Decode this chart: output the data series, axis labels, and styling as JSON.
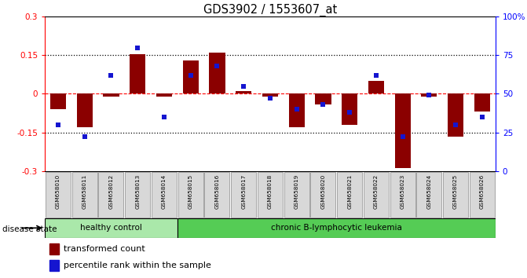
{
  "title": "GDS3902 / 1553607_at",
  "samples": [
    "GSM658010",
    "GSM658011",
    "GSM658012",
    "GSM658013",
    "GSM658014",
    "GSM658015",
    "GSM658016",
    "GSM658017",
    "GSM658018",
    "GSM658019",
    "GSM658020",
    "GSM658021",
    "GSM658022",
    "GSM658023",
    "GSM658024",
    "GSM658025",
    "GSM658026"
  ],
  "bar_values": [
    -0.06,
    -0.13,
    -0.01,
    0.155,
    -0.01,
    0.13,
    0.16,
    0.01,
    -0.01,
    -0.13,
    -0.04,
    -0.12,
    0.05,
    -0.29,
    -0.01,
    -0.165,
    -0.07
  ],
  "blue_dot_percentiles": [
    30,
    22,
    62,
    80,
    35,
    62,
    68,
    55,
    47,
    40,
    43,
    38,
    62,
    22,
    49,
    30,
    35
  ],
  "bar_color": "#8B0000",
  "dot_color": "#1515d0",
  "ylim": [
    -0.3,
    0.3
  ],
  "yticks_left": [
    -0.3,
    -0.15,
    0.0,
    0.15,
    0.3
  ],
  "ytick_labels_left": [
    "-0.3",
    "-0.15",
    "0",
    "0.15",
    "0.3"
  ],
  "right_yticks": [
    0,
    25,
    50,
    75,
    100
  ],
  "right_ylabels": [
    "0",
    "25",
    "50",
    "75",
    "100%"
  ],
  "hlines": [
    -0.15,
    0.15
  ],
  "zero_line": 0.0,
  "healthy_count": 5,
  "group1_label": "healthy control",
  "group2_label": "chronic B-lymphocytic leukemia",
  "group1_color": "#aae8aa",
  "group2_color": "#55cc55",
  "disease_state_label": "disease state",
  "legend_bar_label": "transformed count",
  "legend_dot_label": "percentile rank within the sample",
  "bar_width": 0.6
}
